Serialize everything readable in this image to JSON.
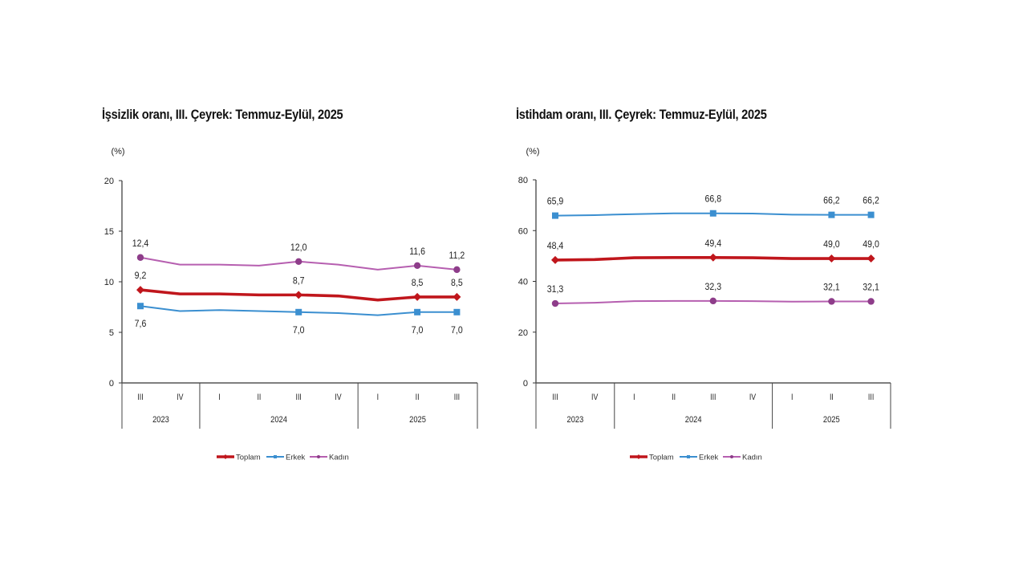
{
  "chart_data": [
    {
      "type": "line",
      "title": "İşsizlik oranı, III. Çeyrek: Temmuz-Eylül, 2025",
      "ylabel": "(%)",
      "xlabel": "",
      "ylim": [
        0,
        20
      ],
      "yticks": [
        "0",
        "5",
        "10",
        "15",
        "20"
      ],
      "ytick_values": [
        0,
        5,
        10,
        15,
        20
      ],
      "categories": [
        "III",
        "IV",
        "I",
        "II",
        "III",
        "IV",
        "I",
        "II",
        "III"
      ],
      "year_groups": [
        {
          "label": "2023",
          "count": 2
        },
        {
          "label": "2024",
          "count": 4
        },
        {
          "label": "2025",
          "count": 3
        }
      ],
      "legend_position": "bottom",
      "series": [
        {
          "name": "Toplam",
          "color": "#c0161c",
          "marker": "diamond",
          "values": [
            9.2,
            8.8,
            8.8,
            8.7,
            8.7,
            8.6,
            8.2,
            8.5,
            8.5
          ],
          "labels": {
            "0": "9,2",
            "4": "8,7",
            "7": "8,5",
            "8": "8,5"
          },
          "label_pos": "above"
        },
        {
          "name": "Erkek",
          "color": "#3b8fd0",
          "marker": "square",
          "values": [
            7.6,
            7.1,
            7.2,
            7.1,
            7.0,
            6.9,
            6.7,
            7.0,
            7.0
          ],
          "labels": {
            "0": "7,6",
            "4": "7,0",
            "7": "7,0",
            "8": "7,0"
          },
          "label_pos": "below"
        },
        {
          "name": "Kadın",
          "color": "#b65fb0",
          "marker": "circle",
          "values": [
            12.4,
            11.7,
            11.7,
            11.6,
            12.0,
            11.7,
            11.2,
            11.6,
            11.2
          ],
          "labels": {
            "0": "12,4",
            "4": "12,0",
            "7": "11,6",
            "8": "11,2"
          },
          "label_pos": "above"
        }
      ]
    },
    {
      "type": "line",
      "title": "İstihdam oranı, III. Çeyrek: Temmuz-Eylül, 2025",
      "ylabel": "(%)",
      "xlabel": "",
      "ylim": [
        0,
        80
      ],
      "yticks": [
        "0",
        "20",
        "40",
        "60",
        "80"
      ],
      "ytick_values": [
        0,
        20,
        40,
        60,
        80
      ],
      "categories": [
        "III",
        "IV",
        "I",
        "II",
        "III",
        "IV",
        "I",
        "II",
        "III"
      ],
      "year_groups": [
        {
          "label": "2023",
          "count": 2
        },
        {
          "label": "2024",
          "count": 4
        },
        {
          "label": "2025",
          "count": 3
        }
      ],
      "legend_position": "bottom",
      "series": [
        {
          "name": "Toplam",
          "color": "#c0161c",
          "marker": "diamond",
          "values": [
            48.4,
            48.6,
            49.3,
            49.4,
            49.4,
            49.3,
            49.0,
            49.0,
            49.0
          ],
          "labels": {
            "0": "48,4",
            "4": "49,4",
            "7": "49,0",
            "8": "49,0"
          },
          "label_pos": "above"
        },
        {
          "name": "Erkek",
          "color": "#3b8fd0",
          "marker": "square",
          "values": [
            65.9,
            66.1,
            66.5,
            66.8,
            66.8,
            66.7,
            66.3,
            66.2,
            66.2
          ],
          "labels": {
            "0": "65,9",
            "4": "66,8",
            "7": "66,2",
            "8": "66,2"
          },
          "label_pos": "above"
        },
        {
          "name": "Kadın",
          "color": "#b65fb0",
          "marker": "circle",
          "values": [
            31.3,
            31.6,
            32.2,
            32.3,
            32.3,
            32.2,
            32.0,
            32.1,
            32.1
          ],
          "labels": {
            "0": "31,3",
            "4": "32,3",
            "7": "32,1",
            "8": "32,1"
          },
          "label_pos": "above"
        }
      ]
    }
  ]
}
